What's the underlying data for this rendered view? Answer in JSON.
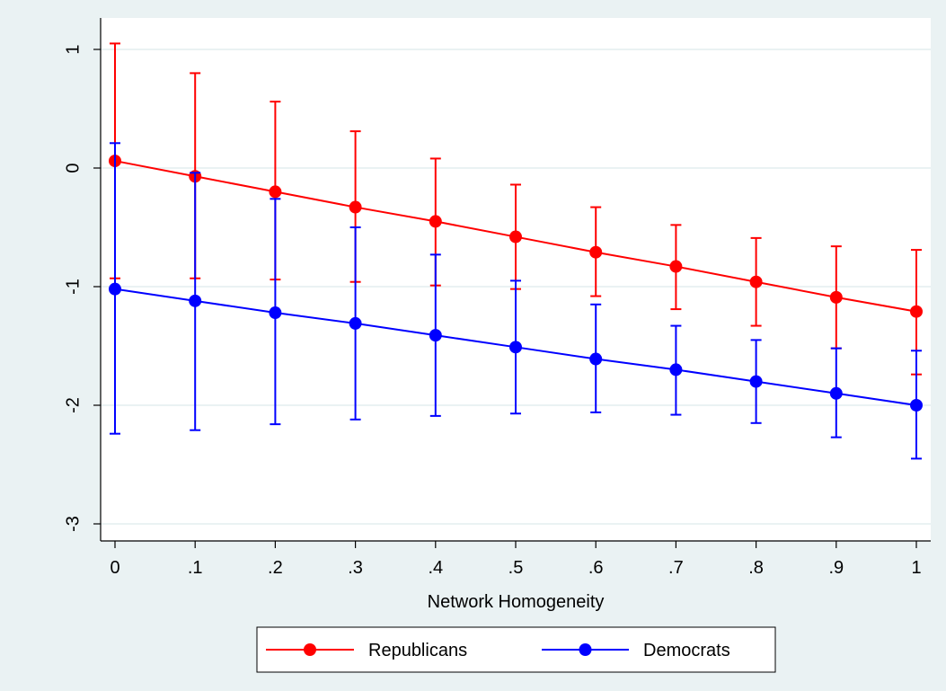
{
  "chart_data": {
    "type": "line",
    "xlabel": "Network Homogeneity",
    "ylabel": "",
    "x": [
      0,
      0.1,
      0.2,
      0.3,
      0.4,
      0.5,
      0.6,
      0.7,
      0.8,
      0.9,
      1
    ],
    "x_tick_labels": [
      "0",
      ".1",
      ".2",
      ".3",
      ".4",
      ".5",
      ".6",
      ".7",
      ".8",
      ".9",
      "1"
    ],
    "y_ticks": [
      1,
      0,
      -1,
      -2,
      -3
    ],
    "y_tick_labels": [
      "1",
      "0",
      "-1",
      "-2",
      "-3"
    ],
    "xlim": [
      0,
      1
    ],
    "ylim": [
      -3,
      1
    ],
    "grid": "horizontal",
    "legend_position": "bottom",
    "series": [
      {
        "name": "Republicans",
        "color": "#ff0000",
        "values": [
          0.06,
          -0.07,
          -0.2,
          -0.33,
          -0.45,
          -0.58,
          -0.71,
          -0.83,
          -0.96,
          -1.09,
          -1.21
        ],
        "lower": [
          -0.93,
          -0.93,
          -0.94,
          -0.96,
          -0.99,
          -1.02,
          -1.08,
          -1.19,
          -1.33,
          -1.52,
          -1.74
        ],
        "upper": [
          1.05,
          0.8,
          0.56,
          0.31,
          0.08,
          -0.14,
          -0.33,
          -0.48,
          -0.59,
          -0.66,
          -0.69
        ]
      },
      {
        "name": "Democrats",
        "color": "#0000ff",
        "values": [
          -1.02,
          -1.12,
          -1.22,
          -1.31,
          -1.41,
          -1.51,
          -1.61,
          -1.7,
          -1.8,
          -1.9,
          -2.0
        ],
        "lower": [
          -2.24,
          -2.21,
          -2.16,
          -2.12,
          -2.09,
          -2.07,
          -2.06,
          -2.08,
          -2.15,
          -2.27,
          -2.45
        ],
        "upper": [
          0.21,
          -0.04,
          -0.26,
          -0.5,
          -0.73,
          -0.95,
          -1.15,
          -1.33,
          -1.45,
          -1.52,
          -1.54
        ]
      }
    ]
  }
}
